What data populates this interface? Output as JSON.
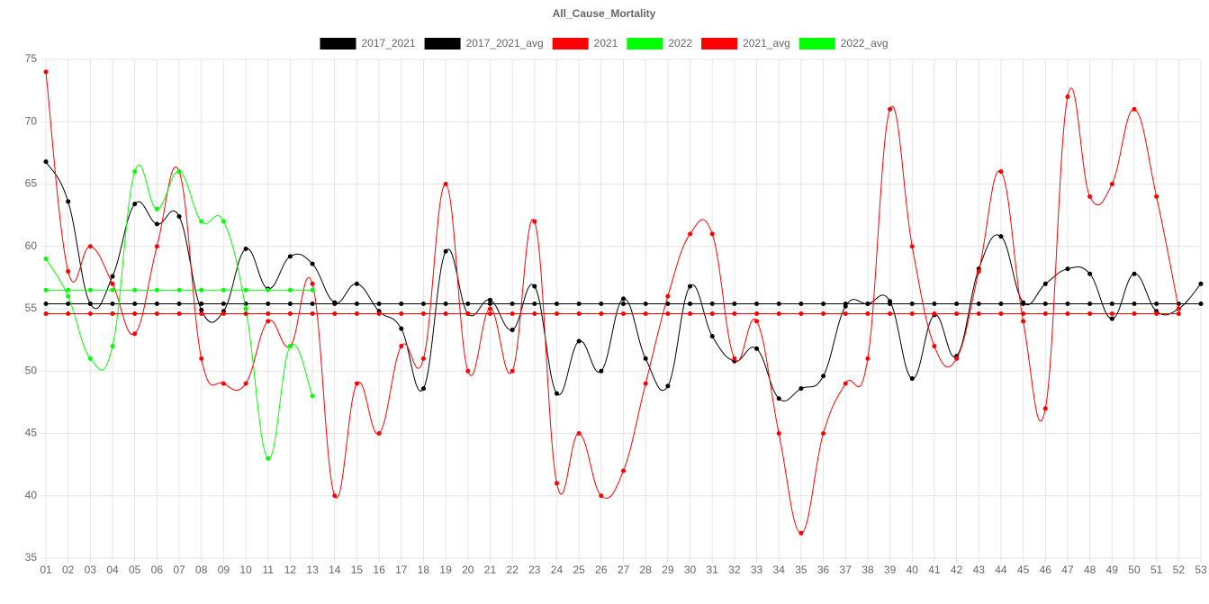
{
  "chart_data": {
    "type": "line",
    "title": "All_Cause_Mortality",
    "categories": [
      "01",
      "02",
      "03",
      "04",
      "05",
      "06",
      "07",
      "08",
      "09",
      "10",
      "11",
      "12",
      "13",
      "14",
      "15",
      "16",
      "17",
      "18",
      "19",
      "20",
      "21",
      "22",
      "23",
      "24",
      "25",
      "26",
      "27",
      "28",
      "29",
      "30",
      "31",
      "32",
      "33",
      "34",
      "35",
      "36",
      "37",
      "38",
      "39",
      "40",
      "41",
      "42",
      "43",
      "44",
      "45",
      "46",
      "47",
      "48",
      "49",
      "50",
      "51",
      "52",
      "53"
    ],
    "series": [
      {
        "name": "2017_2021",
        "color": "#000000",
        "values": [
          66.8,
          63.6,
          55.4,
          57.6,
          63.4,
          61.8,
          62.4,
          54.9,
          54.8,
          59.8,
          56.6,
          59.2,
          58.6,
          55.5,
          57.0,
          54.8,
          53.4,
          48.6,
          59.6,
          54.6,
          55.7,
          53.3,
          56.8,
          48.2,
          52.4,
          50.0,
          55.8,
          51.0,
          48.8,
          56.8,
          52.8,
          50.8,
          51.8,
          47.8,
          48.6,
          49.6,
          55.2,
          55.4,
          55.6,
          49.4,
          54.5,
          51.2,
          58.2,
          60.8,
          55.5,
          57.0,
          58.2,
          57.8,
          54.2,
          57.8,
          54.8,
          55.0,
          57.0
        ]
      },
      {
        "name": "2017_2021_avg",
        "color": "#000000",
        "values": [
          55.4,
          55.4,
          55.4,
          55.4,
          55.4,
          55.4,
          55.4,
          55.4,
          55.4,
          55.4,
          55.4,
          55.4,
          55.4,
          55.4,
          55.4,
          55.4,
          55.4,
          55.4,
          55.4,
          55.4,
          55.4,
          55.4,
          55.4,
          55.4,
          55.4,
          55.4,
          55.4,
          55.4,
          55.4,
          55.4,
          55.4,
          55.4,
          55.4,
          55.4,
          55.4,
          55.4,
          55.4,
          55.4,
          55.4,
          55.4,
          55.4,
          55.4,
          55.4,
          55.4,
          55.4,
          55.4,
          55.4,
          55.4,
          55.4,
          55.4,
          55.4,
          55.4,
          55.4
        ]
      },
      {
        "name": "2021",
        "color": "#ff0000",
        "values": [
          74,
          58,
          60,
          57,
          53,
          60,
          66,
          51,
          49,
          49,
          54,
          52,
          57,
          40,
          49,
          45,
          52,
          51,
          65,
          50,
          55,
          50,
          62,
          41,
          45,
          40,
          42,
          49,
          56,
          61,
          61,
          51,
          54,
          45,
          37,
          45,
          49,
          51,
          71,
          60,
          52,
          51,
          58,
          66,
          54,
          47,
          72,
          64,
          65,
          71,
          64,
          55,
          null
        ]
      },
      {
        "name": "2022",
        "color": "#00ff00",
        "values": [
          59,
          56,
          51,
          52,
          66,
          63,
          66,
          62,
          62,
          55,
          43,
          52,
          48,
          null,
          null,
          null,
          null,
          null,
          null,
          null,
          null,
          null,
          null,
          null,
          null,
          null,
          null,
          null,
          null,
          null,
          null,
          null,
          null,
          null,
          null,
          null,
          null,
          null,
          null,
          null,
          null,
          null,
          null,
          null,
          null,
          null,
          null,
          null,
          null,
          null,
          null,
          null,
          null
        ]
      },
      {
        "name": "2021_avg",
        "color": "#ff0000",
        "values": [
          54.6,
          54.6,
          54.6,
          54.6,
          54.6,
          54.6,
          54.6,
          54.6,
          54.6,
          54.6,
          54.6,
          54.6,
          54.6,
          54.6,
          54.6,
          54.6,
          54.6,
          54.6,
          54.6,
          54.6,
          54.6,
          54.6,
          54.6,
          54.6,
          54.6,
          54.6,
          54.6,
          54.6,
          54.6,
          54.6,
          54.6,
          54.6,
          54.6,
          54.6,
          54.6,
          54.6,
          54.6,
          54.6,
          54.6,
          54.6,
          54.6,
          54.6,
          54.6,
          54.6,
          54.6,
          54.6,
          54.6,
          54.6,
          54.6,
          54.6,
          54.6,
          54.6,
          null
        ]
      },
      {
        "name": "2022_avg",
        "color": "#00ff00",
        "values": [
          56.5,
          56.5,
          56.5,
          56.5,
          56.5,
          56.5,
          56.5,
          56.5,
          56.5,
          56.5,
          56.5,
          56.5,
          56.5,
          null,
          null,
          null,
          null,
          null,
          null,
          null,
          null,
          null,
          null,
          null,
          null,
          null,
          null,
          null,
          null,
          null,
          null,
          null,
          null,
          null,
          null,
          null,
          null,
          null,
          null,
          null,
          null,
          null,
          null,
          null,
          null,
          null,
          null,
          null,
          null,
          null,
          null,
          null,
          null
        ]
      }
    ],
    "ylim": [
      35,
      75
    ],
    "yticks": [
      35,
      40,
      45,
      50,
      55,
      60,
      65,
      70,
      75
    ],
    "grid": true,
    "legend": "top"
  }
}
